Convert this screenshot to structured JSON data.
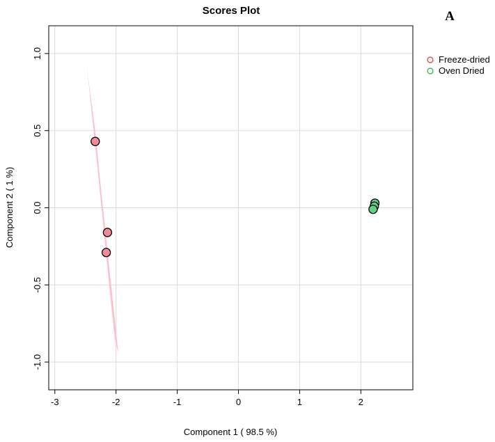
{
  "chart_data": {
    "type": "scatter",
    "title": "Scores Plot",
    "panel_label": "A",
    "xlabel": "Component 1 ( 98.5 %)",
    "ylabel": "Component 2 ( 1 %)",
    "xlim": [
      -3.1,
      2.85
    ],
    "ylim": [
      -1.18,
      1.18
    ],
    "x_ticks": [
      -3,
      -2,
      -1,
      0,
      1,
      2
    ],
    "x_tick_labels": [
      "-3",
      "-2",
      "-1",
      "0",
      "1",
      "2"
    ],
    "y_ticks": [
      -1.0,
      -0.5,
      0.0,
      0.5,
      1.0
    ],
    "y_tick_labels": [
      "-1.0",
      "-0.5",
      "0.0",
      "0.5",
      "1.0"
    ],
    "grid": true,
    "legend_position": "top-right",
    "series": [
      {
        "name": "Freeze-dried",
        "color": "#e8303a",
        "fill": "#f28a96",
        "points": [
          {
            "x": -2.34,
            "y": 0.43
          },
          {
            "x": -2.14,
            "y": -0.16
          },
          {
            "x": -2.16,
            "y": -0.29
          }
        ],
        "ellipse": {
          "color": "#ffc0cb",
          "polygon": [
            [
              -2.48,
              0.93
            ],
            [
              -2.44,
              0.8
            ],
            [
              -2.34,
              0.5
            ],
            [
              -2.24,
              0.1
            ],
            [
              -2.12,
              -0.35
            ],
            [
              -2.0,
              -0.8
            ],
            [
              -1.96,
              -0.95
            ],
            [
              -2.02,
              -0.85
            ],
            [
              -2.1,
              -0.55
            ],
            [
              -2.2,
              -0.15
            ],
            [
              -2.3,
              0.25
            ],
            [
              -2.42,
              0.7
            ]
          ]
        }
      },
      {
        "name": "Oven Dried",
        "color": "#22b14c",
        "fill": "#5fd08a",
        "points": [
          {
            "x": 2.23,
            "y": 0.03
          },
          {
            "x": 2.22,
            "y": 0.01
          },
          {
            "x": 2.2,
            "y": -0.01
          }
        ],
        "ellipse": {
          "color": "#b8ecc9",
          "polygon": [
            [
              2.19,
              0.035
            ],
            [
              2.23,
              0.04
            ],
            [
              2.24,
              0.0
            ],
            [
              2.2,
              -0.02
            ],
            [
              2.18,
              0.0
            ]
          ]
        }
      }
    ]
  }
}
